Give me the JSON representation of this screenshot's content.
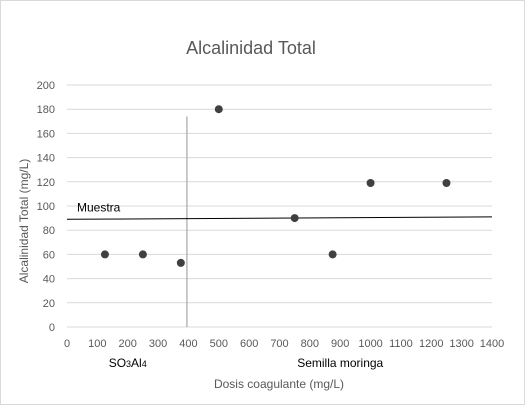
{
  "chart_data": {
    "type": "scatter",
    "title": "Alcalinidad Total",
    "xlabel": "Dosis coagulante  (mg/L)",
    "ylabel": "Alcalinidad Total  (mg/L)",
    "xlim": [
      0,
      1400
    ],
    "ylim": [
      0,
      200
    ],
    "xticks": [
      "0",
      "100",
      "200",
      "300",
      "400",
      "500",
      "600",
      "700",
      "800",
      "900",
      "1000",
      "1100",
      "1200",
      "1300",
      "1400"
    ],
    "yticks": [
      "0",
      "20",
      "40",
      "60",
      "80",
      "100",
      "120",
      "140",
      "160",
      "180",
      "200"
    ],
    "grid": true,
    "points": [
      {
        "x": 125,
        "y": 60
      },
      {
        "x": 250,
        "y": 60
      },
      {
        "x": 375,
        "y": 53
      },
      {
        "x": 500,
        "y": 180
      },
      {
        "x": 750,
        "y": 90
      },
      {
        "x": 875,
        "y": 60
      },
      {
        "x": 1000,
        "y": 119
      },
      {
        "x": 1250,
        "y": 119
      }
    ],
    "reference_line": {
      "label": "Muestra",
      "x": [
        0,
        1400
      ],
      "y": [
        89,
        91
      ]
    },
    "divider": {
      "x": 395,
      "y": [
        0,
        174
      ]
    },
    "group_labels": [
      {
        "text": "SO3Al4",
        "x": 200
      },
      {
        "text": "Semilla moringa",
        "x": 900
      }
    ],
    "colors": {
      "point": "#404040",
      "grid": "#d9d9d9",
      "line": "#000000",
      "divider": "#a6a6a6"
    }
  }
}
